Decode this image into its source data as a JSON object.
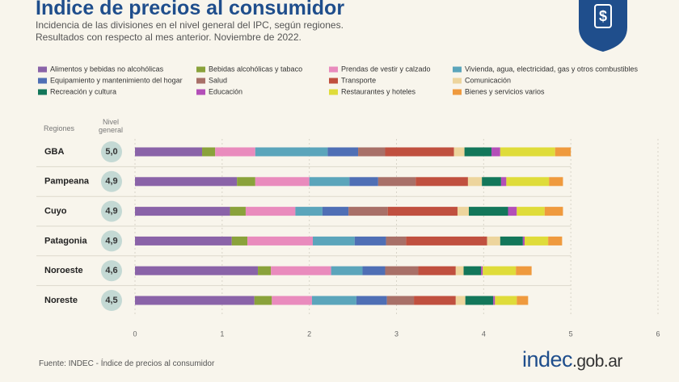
{
  "chart_data": {
    "type": "stacked-bar-horizontal",
    "title": "Indice de precios al consumidor",
    "subtitle": "Incidencia de las divisiones en el nivel general del IPC, según regiones. Resultados con respecto al mes anterior. Noviembre de 2022.",
    "categories_header": "Regiones",
    "categories": [
      "GBA",
      "Pampeana",
      "Cuyo",
      "Patagonia",
      "Noroeste",
      "Noreste"
    ],
    "general": {
      "name": "Nivel general",
      "values": [
        5.0,
        4.9,
        4.9,
        4.9,
        4.6,
        4.5
      ],
      "value_labels": [
        "5,0",
        "4,9",
        "4,9",
        "4,9",
        "4,6",
        "4,5"
      ]
    },
    "series": [
      {
        "name": "Alimentos y bebidas no alcohólicas",
        "color": "#8a63a8",
        "values": [
          0.77,
          1.17,
          1.09,
          1.11,
          1.41,
          1.37
        ]
      },
      {
        "name": "Bebidas alcohólicas y tabaco",
        "color": "#8aa23b",
        "values": [
          0.15,
          0.21,
          0.18,
          0.18,
          0.15,
          0.2
        ]
      },
      {
        "name": "Prendas de vestir y calzado",
        "color": "#e98bbd",
        "values": [
          0.46,
          0.62,
          0.57,
          0.75,
          0.69,
          0.46
        ]
      },
      {
        "name": "Vivienda, agua, electricidad, gas y otros combustibles",
        "color": "#5ba5bb",
        "values": [
          0.83,
          0.46,
          0.31,
          0.48,
          0.36,
          0.51
        ]
      },
      {
        "name": "Equipamiento y mantenimiento del hogar",
        "color": "#4f6fb5",
        "values": [
          0.35,
          0.33,
          0.3,
          0.36,
          0.26,
          0.35
        ]
      },
      {
        "name": "Salud",
        "color": "#a87068",
        "values": [
          0.31,
          0.43,
          0.45,
          0.23,
          0.38,
          0.31
        ]
      },
      {
        "name": "Transporte",
        "color": "#c0503f",
        "values": [
          0.79,
          0.6,
          0.8,
          0.93,
          0.43,
          0.48
        ]
      },
      {
        "name": "Comunicación",
        "color": "#edd59d",
        "values": [
          0.12,
          0.16,
          0.13,
          0.15,
          0.09,
          0.11
        ]
      },
      {
        "name": "Recreación y cultura",
        "color": "#13775a",
        "values": [
          0.31,
          0.22,
          0.45,
          0.26,
          0.2,
          0.32
        ]
      },
      {
        "name": "Educación",
        "color": "#b34fb8",
        "values": [
          0.1,
          0.06,
          0.1,
          0.02,
          0.02,
          0.02
        ]
      },
      {
        "name": "Restaurantes y hoteles",
        "color": "#dfdc3a",
        "values": [
          0.63,
          0.49,
          0.32,
          0.27,
          0.38,
          0.25
        ]
      },
      {
        "name": "Bienes y servicios varios",
        "color": "#ef9a3e",
        "values": [
          0.18,
          0.16,
          0.21,
          0.16,
          0.18,
          0.13
        ]
      }
    ],
    "xlim": [
      0,
      6
    ],
    "xticks": [
      0,
      1,
      2,
      3,
      4,
      5,
      6
    ],
    "grid": true,
    "source": "Fuente: INDEC - Índice de precios al consumidor",
    "logo": {
      "brand": "indec",
      "domain": ".gob.ar"
    }
  }
}
